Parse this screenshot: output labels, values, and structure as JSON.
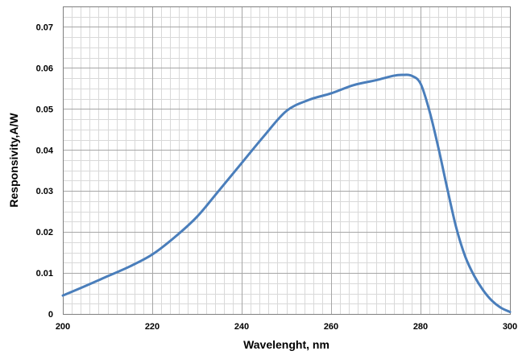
{
  "chart_data": {
    "type": "line",
    "title": "",
    "xlabel": "Wavelenght, nm",
    "ylabel": "Responsivity,A/W",
    "xlim": [
      200,
      300
    ],
    "ylim": [
      0,
      0.075
    ],
    "x_ticks": [
      200,
      220,
      240,
      260,
      280,
      300
    ],
    "x_tick_labels": [
      "200",
      "220",
      "240",
      "260",
      "280",
      "300"
    ],
    "y_ticks": [
      0,
      0.01,
      0.02,
      0.03,
      0.04,
      0.05,
      0.06,
      0.07
    ],
    "y_tick_labels": [
      "0",
      "0.01",
      "0.02",
      "0.03",
      "0.04",
      "0.05",
      "0.06",
      "0.07"
    ],
    "x_minor_step": 2,
    "y_minor_step": 0.0025,
    "grid": true,
    "legend": "none",
    "line_color": "#4a7ebb",
    "series": [
      {
        "x": [
          200,
          205,
          210,
          215,
          220,
          225,
          230,
          235,
          240,
          245,
          250,
          255,
          260,
          265,
          270,
          274,
          276,
          278,
          280,
          282,
          284,
          286,
          288,
          290,
          292,
          294,
          296,
          298,
          300
        ],
        "y": [
          0.0045,
          0.0068,
          0.0092,
          0.0116,
          0.0145,
          0.0187,
          0.0237,
          0.0302,
          0.0368,
          0.0434,
          0.0495,
          0.0522,
          0.0538,
          0.0558,
          0.057,
          0.0581,
          0.0583,
          0.0581,
          0.0562,
          0.0495,
          0.0405,
          0.0305,
          0.021,
          0.014,
          0.0093,
          0.0058,
          0.0032,
          0.0015,
          0.0005
        ]
      }
    ]
  }
}
